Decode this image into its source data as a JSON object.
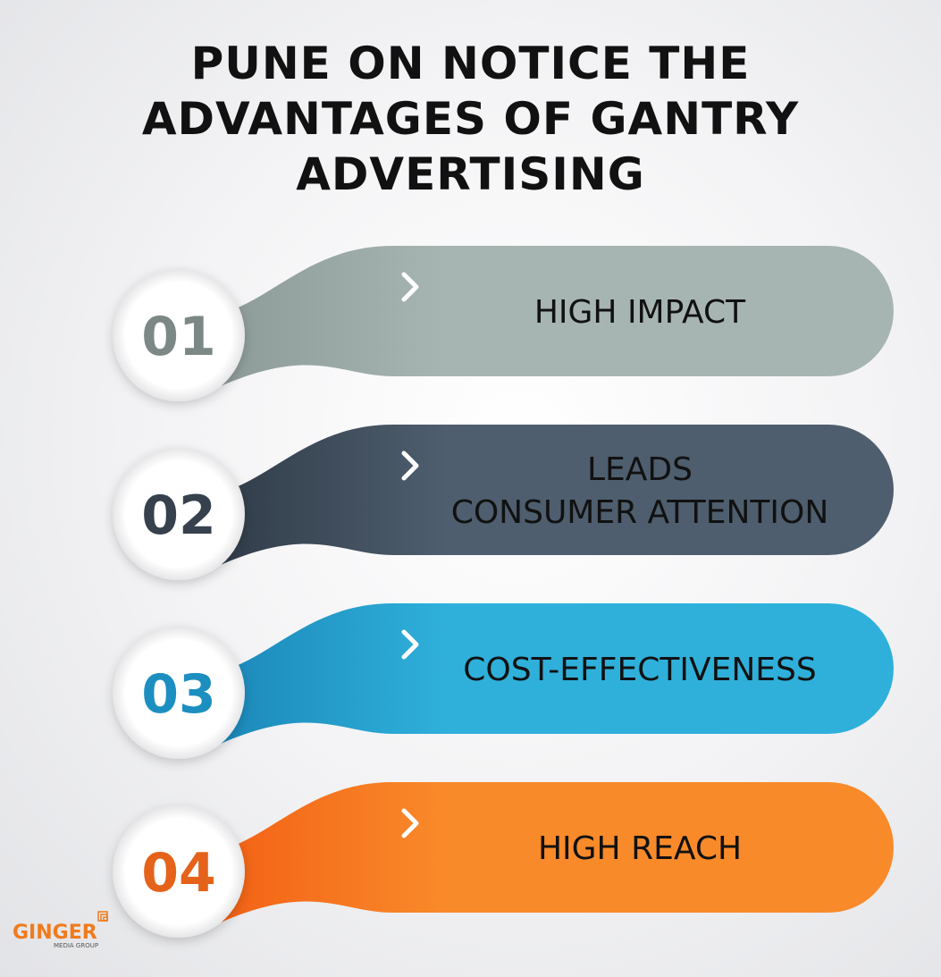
{
  "header": {
    "title": "PUNE ON NOTICE THE ADVANTAGES OF GANTRY ADVERTISING"
  },
  "items": [
    {
      "number": "01",
      "label": [
        "HIGH IMPACT"
      ],
      "color": "#a7b5b2",
      "dark": "#8c9a97",
      "number_color": "#7b8886"
    },
    {
      "number": "02",
      "label": [
        "LEADS",
        "CONSUMER ATTENTION"
      ],
      "color": "#4e5e6e",
      "dark": "#2f3a47",
      "number_color": "#36414d"
    },
    {
      "number": "03",
      "label": [
        "COST-EFFECTIVENESS"
      ],
      "color": "#2fb0da",
      "dark": "#1a86b8",
      "number_color": "#1c8fc0"
    },
    {
      "number": "04",
      "label": [
        "HIGH REACH"
      ],
      "color": "#f98a2a",
      "dark": "#f35f14",
      "number_color": "#e5621a"
    }
  ],
  "logo": {
    "name": "GINGER",
    "tagline": "MEDIA GROUP"
  }
}
